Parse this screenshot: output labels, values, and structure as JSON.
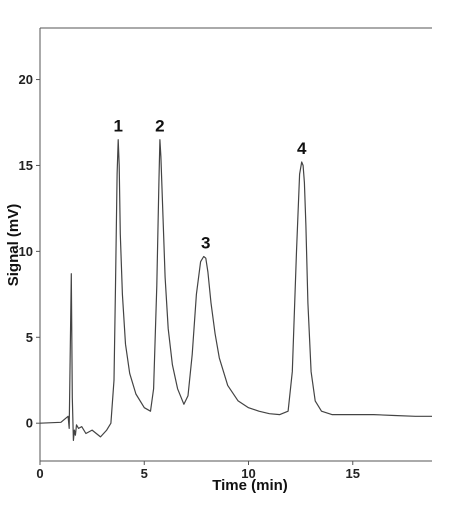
{
  "chart_data": {
    "type": "line",
    "title": "",
    "xlabel": "Time (min)",
    "ylabel": "Signal (mV)",
    "xlim": [
      0,
      18.8
    ],
    "ylim": [
      -2.2,
      23
    ],
    "x_ticks": [
      0,
      5,
      10,
      15
    ],
    "y_ticks": [
      0,
      5,
      10,
      15,
      20
    ],
    "grid": false,
    "legend": "none",
    "line_color": "#444444",
    "series": [
      {
        "x": [
          0,
          1.0,
          1.35,
          1.4,
          1.5,
          1.55,
          1.6,
          1.65,
          1.7,
          1.75,
          1.85,
          2.0,
          2.2,
          2.5,
          2.7,
          2.9,
          3.05,
          3.2,
          3.4,
          3.55,
          3.62,
          3.7,
          3.75,
          3.8,
          3.85,
          3.95,
          4.1,
          4.3,
          4.6,
          5.0,
          5.3,
          5.45,
          5.6,
          5.7,
          5.75,
          5.8,
          5.9,
          6.0,
          6.15,
          6.35,
          6.6,
          6.9,
          7.1,
          7.3,
          7.5,
          7.7,
          7.85,
          7.95,
          8.05,
          8.2,
          8.4,
          8.6,
          9.0,
          9.5,
          10.0,
          10.5,
          11.0,
          11.5,
          11.9,
          12.1,
          12.3,
          12.45,
          12.55,
          12.62,
          12.68,
          12.75,
          12.85,
          13.0,
          13.2,
          13.5,
          14.0,
          15.0,
          16.0,
          17.0,
          18.0,
          18.8
        ],
        "y": [
          0.0,
          0.05,
          0.4,
          -0.3,
          8.7,
          1.5,
          -1.0,
          -0.4,
          -0.7,
          -0.1,
          -0.3,
          -0.2,
          -0.6,
          -0.4,
          -0.6,
          -0.8,
          -0.6,
          -0.4,
          0.0,
          2.5,
          8.0,
          14.5,
          16.5,
          15.0,
          11.0,
          7.5,
          4.6,
          2.9,
          1.7,
          0.9,
          0.7,
          2.0,
          8.0,
          14.0,
          16.5,
          15.5,
          12.0,
          8.5,
          5.5,
          3.4,
          2.0,
          1.1,
          1.6,
          4.0,
          7.5,
          9.4,
          9.7,
          9.6,
          8.8,
          7.0,
          5.2,
          3.8,
          2.2,
          1.3,
          0.9,
          0.7,
          0.55,
          0.5,
          0.7,
          3.0,
          10.0,
          14.5,
          15.2,
          15.0,
          14.0,
          11.5,
          7.0,
          3.0,
          1.3,
          0.7,
          0.5,
          0.5,
          0.5,
          0.45,
          0.4,
          0.4
        ]
      }
    ],
    "annotations": [
      {
        "text": "1",
        "x": 3.75,
        "y": 16.5
      },
      {
        "text": "2",
        "x": 5.75,
        "y": 16.5
      },
      {
        "text": "3",
        "x": 7.95,
        "y": 9.7
      },
      {
        "text": "4",
        "x": 12.55,
        "y": 15.2
      }
    ]
  }
}
